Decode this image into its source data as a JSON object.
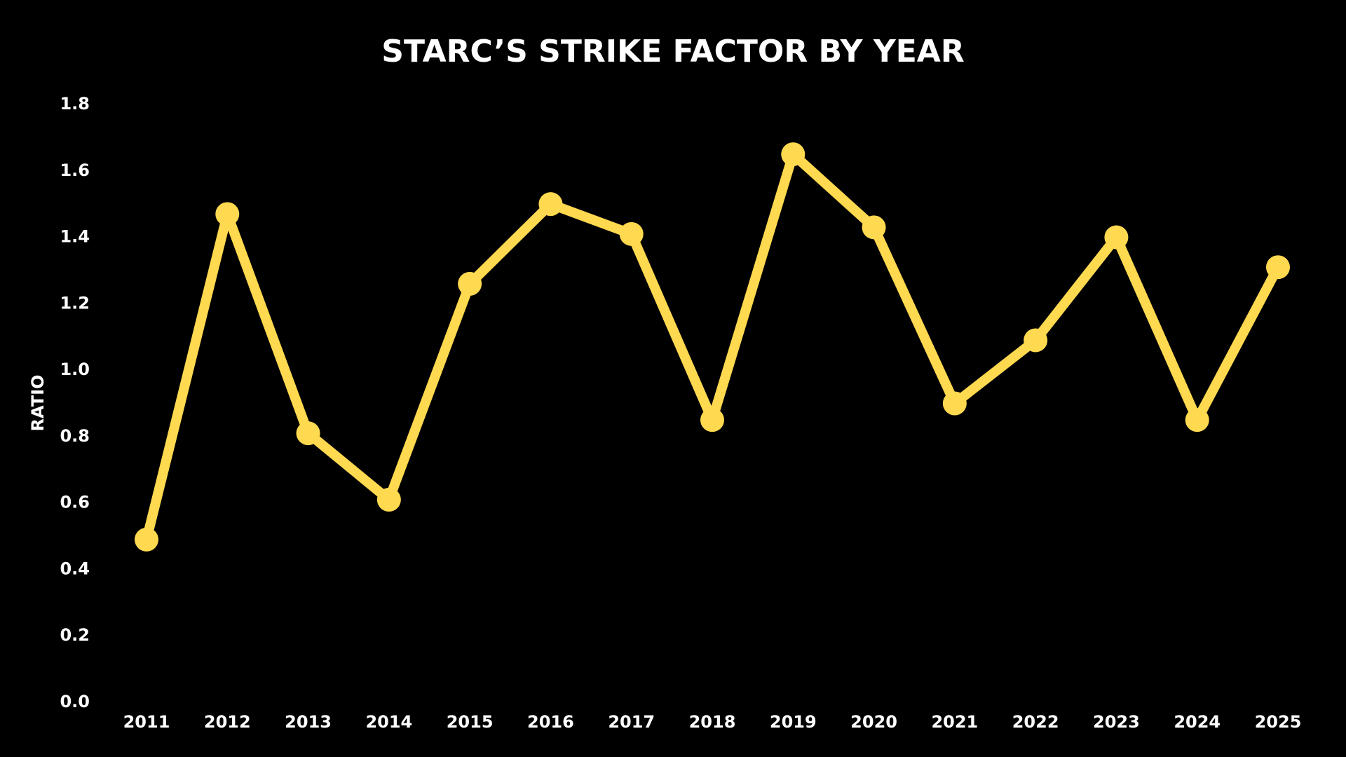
{
  "chart_data": {
    "type": "line",
    "title": "STARC’S STRIKE FACTOR BY YEAR",
    "y_label": "RATIO",
    "categories": [
      "2011",
      "2012",
      "2013",
      "2014",
      "2015",
      "2016",
      "2017",
      "2018",
      "2019",
      "2020",
      "2021",
      "2022",
      "2023",
      "2024",
      "2025"
    ],
    "series": [
      {
        "name": "Strike Factor",
        "color": "#ffd94f",
        "values": [
          0.49,
          1.47,
          0.81,
          0.61,
          1.26,
          1.5,
          1.41,
          0.85,
          1.65,
          1.43,
          0.9,
          1.09,
          1.4,
          0.85,
          1.31
        ]
      }
    ],
    "ylim": [
      0,
      1.8
    ],
    "yticks": [
      {
        "value": 0,
        "label": "0.0"
      },
      0.2,
      0.4,
      0.6,
      0.8,
      {
        "value": 1,
        "label": "1.0"
      },
      1.2,
      1.4,
      1.6,
      1.8
    ],
    "grid": false,
    "legend": false
  }
}
